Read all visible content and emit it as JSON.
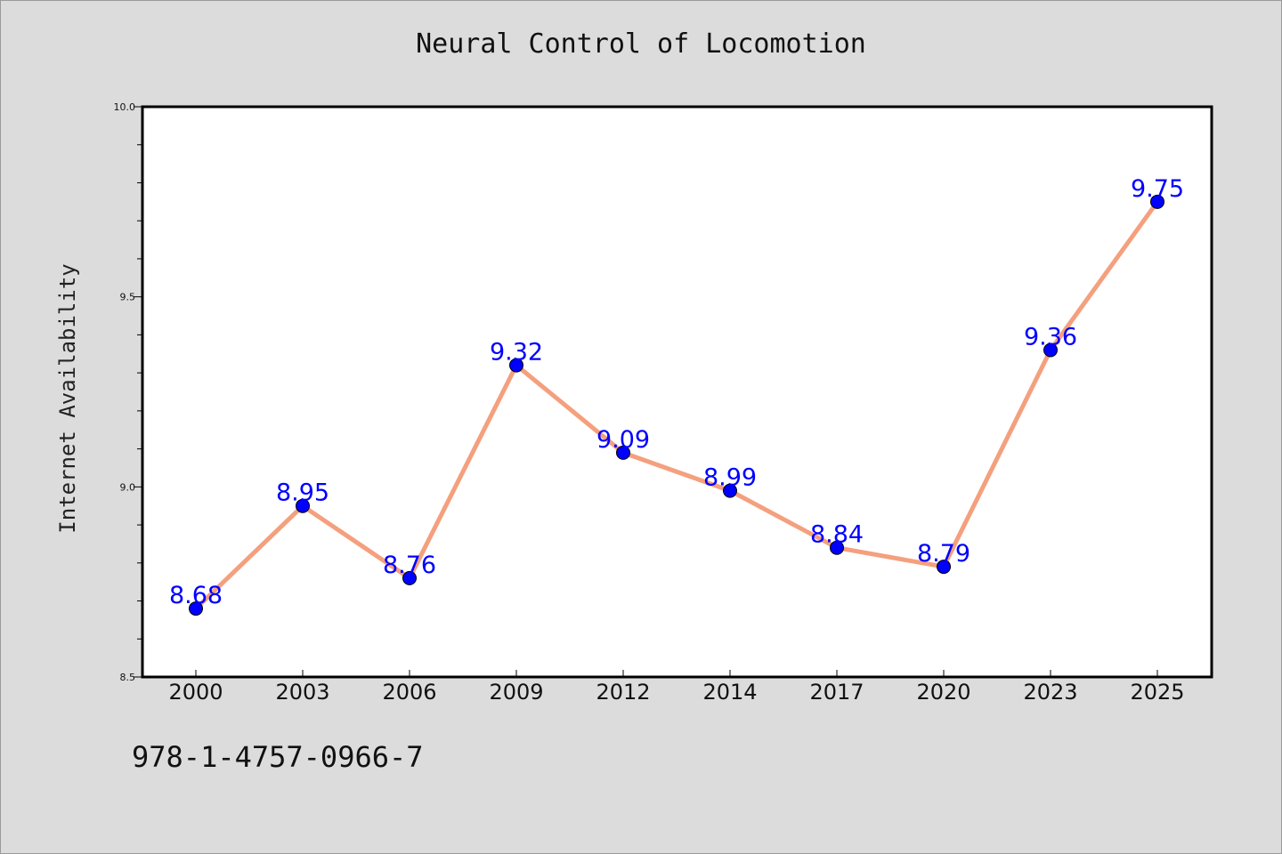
{
  "chart_data": {
    "type": "line",
    "title": "Neural Control of Locomotion",
    "xlabel": "",
    "ylabel": "Internet Availability",
    "categories": [
      "2000",
      "2003",
      "2006",
      "2009",
      "2012",
      "2014",
      "2017",
      "2020",
      "2023",
      "2025"
    ],
    "series": [
      {
        "values": [
          8.68,
          8.95,
          8.76,
          9.32,
          9.09,
          8.99,
          8.84,
          8.79,
          9.36,
          9.75
        ],
        "labels": [
          "8.68",
          "8.95",
          "8.76",
          "9.32",
          "9.09",
          "8.99",
          "8.84",
          "8.79",
          "9.36",
          "9.75"
        ]
      }
    ],
    "ylim": [
      8.5,
      10.0
    ],
    "y_ticks": [
      "8.5",
      "9.0",
      "9.5",
      "10.0"
    ],
    "grid": false,
    "legend": "none",
    "colors": {
      "line": "#f4a07e",
      "marker": "#0000ff",
      "label": "#0000ff"
    }
  },
  "footer": {
    "code": "978-1-4757-0966-7"
  }
}
